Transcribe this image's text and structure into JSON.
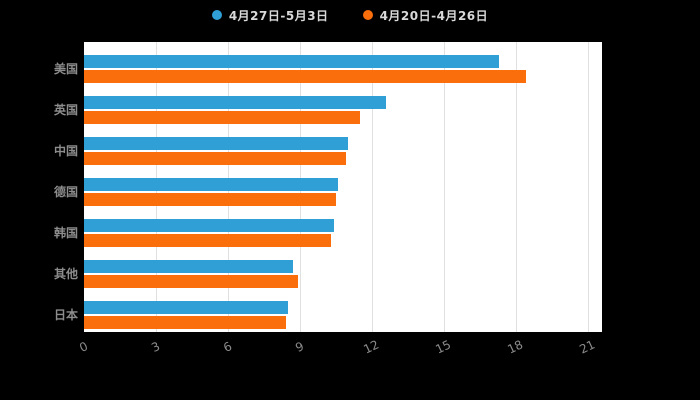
{
  "legend": {
    "series1_label": "4月27日-5月3日",
    "series2_label": "4月20日-4月26日"
  },
  "colors": {
    "series1": "#2f9fd6",
    "series2": "#fa6e0b",
    "background": "#000000",
    "plot_background": "#ffffff",
    "gridline": "#e0e0e0",
    "axis_label": "#8c8c8c",
    "legend_text": "#d9d9d9"
  },
  "chart_data": {
    "type": "bar",
    "orientation": "horizontal",
    "title": "",
    "xlabel": "",
    "ylabel": "",
    "categories": [
      "美国",
      "英国",
      "中国",
      "德国",
      "韩国",
      "其他",
      "日本"
    ],
    "series": [
      {
        "name": "4月27日-5月3日",
        "color": "#2f9fd6",
        "values": [
          17.3,
          12.6,
          11.0,
          10.6,
          10.4,
          8.7,
          8.5
        ]
      },
      {
        "name": "4月20日-4月26日",
        "color": "#fa6e0b",
        "values": [
          18.4,
          11.5,
          10.9,
          10.5,
          10.3,
          8.9,
          8.4
        ]
      }
    ],
    "xlim": [
      0,
      21.6
    ],
    "xticks": [
      0,
      3,
      6,
      9,
      12,
      15,
      18,
      21
    ],
    "grid": true,
    "legend_position": "top"
  }
}
